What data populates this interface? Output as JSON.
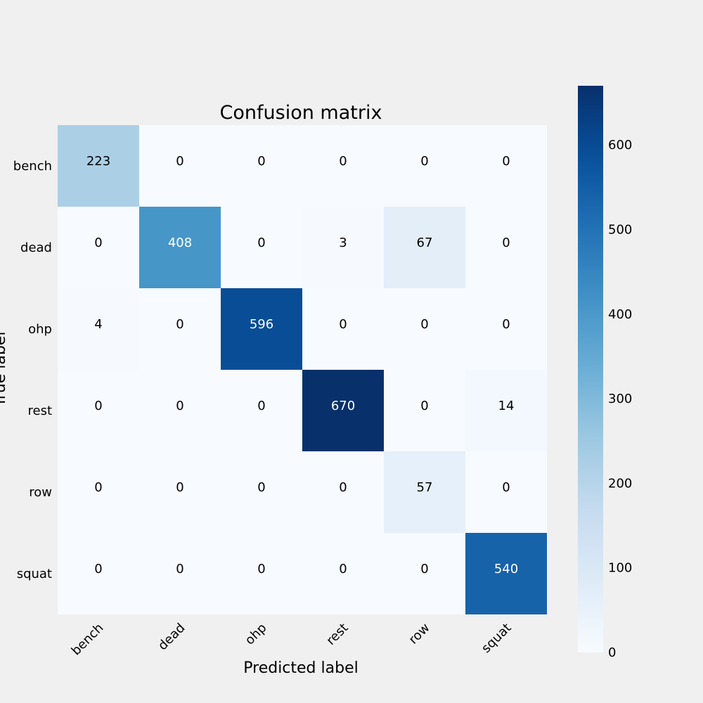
{
  "chart_data": {
    "type": "heatmap",
    "title": "Confusion matrix",
    "xlabel": "Predicted label",
    "ylabel": "True label",
    "x_categories": [
      "bench",
      "dead",
      "ohp",
      "rest",
      "row",
      "squat"
    ],
    "y_categories": [
      "bench",
      "dead",
      "ohp",
      "rest",
      "row",
      "squat"
    ],
    "matrix": [
      [
        223,
        0,
        0,
        0,
        0,
        0
      ],
      [
        0,
        408,
        0,
        3,
        67,
        0
      ],
      [
        4,
        0,
        596,
        0,
        0,
        0
      ],
      [
        0,
        0,
        0,
        670,
        0,
        14
      ],
      [
        0,
        0,
        0,
        0,
        57,
        0
      ],
      [
        0,
        0,
        0,
        0,
        0,
        540
      ]
    ],
    "colormap": "Blues",
    "colorbar": {
      "min": 0,
      "max": 670,
      "ticks": [
        0,
        100,
        200,
        300,
        400,
        500,
        600
      ]
    },
    "grid": false
  }
}
